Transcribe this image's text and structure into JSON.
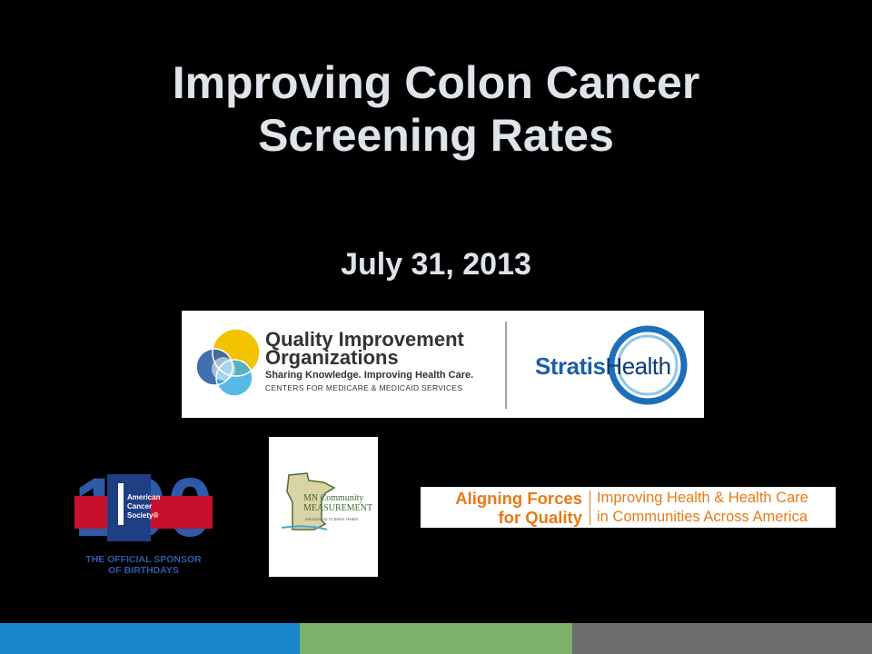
{
  "slide": {
    "title_line1": "Improving Colon Cancer",
    "title_line2": "Screening Rates",
    "date": "July 31, 2013"
  },
  "logos": {
    "qio": {
      "title_line1": "Quality Improvement",
      "title_line2": "Organizations",
      "tagline": "Sharing Knowledge. Improving Health Care.",
      "cms": "CENTERS FOR MEDICARE & MEDICAID SERVICES"
    },
    "stratis": {
      "part1": "Stratis",
      "part2": "Health"
    },
    "acs": {
      "name": "American Cancer Society",
      "number": "100",
      "caption_line1": "THE OFFICIAL SPONSOR",
      "caption_line2": "OF BIRTHDAYS"
    },
    "mn": {
      "line1": "MN Community",
      "line2": "MEASUREMENT",
      "tagline": "Measure Up To Better Health"
    },
    "af4q": {
      "left_line1": "Aligning Forces",
      "left_line2": "for Quality",
      "right_line1": "Improving Health & Health Care",
      "right_line2": "in Communities Across America"
    }
  },
  "colors": {
    "background": "#000000",
    "title_text": "#dfe3ea",
    "footer_blue": "#1a86cc",
    "footer_green": "#7fb36b",
    "footer_gray": "#6e6e70",
    "af4q_orange": "#e77a18"
  }
}
